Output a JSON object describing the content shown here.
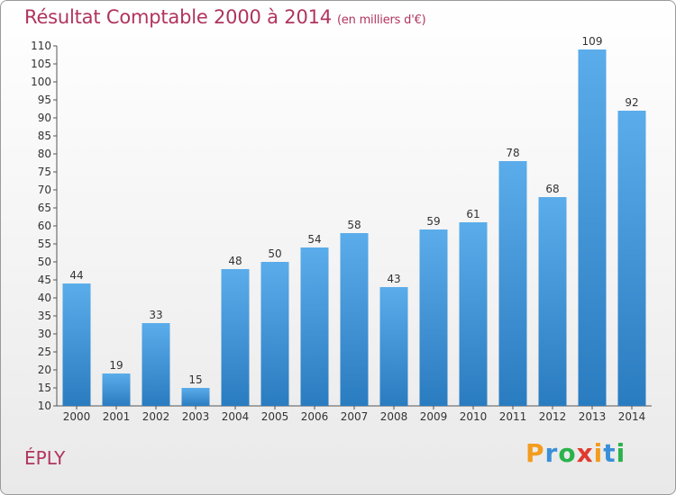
{
  "header": {
    "title": "Résultat Comptable 2000 à 2014",
    "unit": "(en milliers d'€)"
  },
  "footer": {
    "place": "ÉPLY",
    "logo_letters": [
      "P",
      "r",
      "o",
      "x",
      "i",
      "t",
      "i"
    ]
  },
  "colors": {
    "title": "#b0345e",
    "bar_top": "#5aacea",
    "bar_bottom": "#2a7cc0",
    "logo": [
      "#f39c1f",
      "#3a8fd8",
      "#2bb24c",
      "#e03a2f",
      "#f39c1f",
      "#3a8fd8",
      "#2bb24c"
    ]
  },
  "chart_data": {
    "type": "bar",
    "title": "Résultat Comptable 2000 à 2014",
    "subtitle": "(en milliers d'€)",
    "xlabel": "",
    "ylabel": "",
    "categories": [
      "2000",
      "2001",
      "2002",
      "2003",
      "2004",
      "2005",
      "2006",
      "2007",
      "2008",
      "2009",
      "2010",
      "2011",
      "2012",
      "2013",
      "2014"
    ],
    "values": [
      44,
      19,
      33,
      15,
      48,
      50,
      54,
      58,
      43,
      59,
      61,
      78,
      68,
      109,
      92
    ],
    "ylim": [
      10,
      110
    ],
    "yticks": [
      10,
      15,
      20,
      25,
      30,
      35,
      40,
      45,
      50,
      55,
      60,
      65,
      70,
      75,
      80,
      85,
      90,
      95,
      100,
      105,
      110
    ],
    "grid": false
  }
}
